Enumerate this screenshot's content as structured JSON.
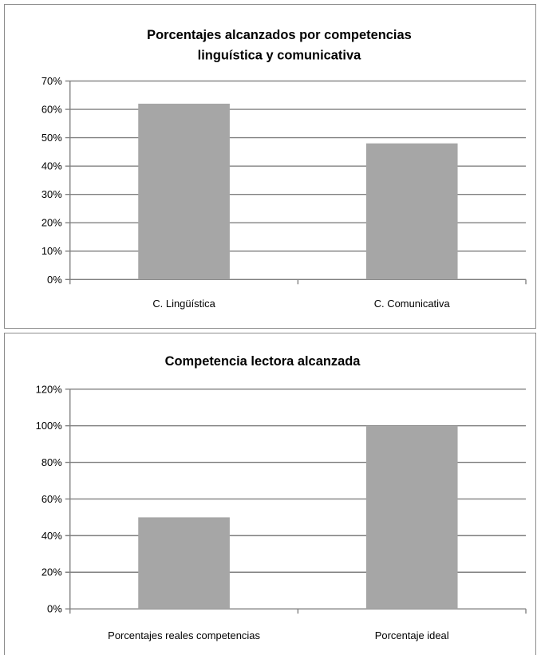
{
  "chart_data": [
    {
      "type": "bar",
      "title": "Porcentajes alcanzados por competencias linguística y comunicativa",
      "title_lines": [
        "Porcentajes alcanzados por competencias",
        "linguística y comunicativa"
      ],
      "categories": [
        "C. Lingüística",
        "C. Comunicativa"
      ],
      "values": [
        62,
        48
      ],
      "value_unit": "%",
      "ylim": [
        0,
        70
      ],
      "yticks": [
        0,
        10,
        20,
        30,
        40,
        50,
        60,
        70
      ],
      "ytick_labels": [
        "0%",
        "10%",
        "20%",
        "30%",
        "40%",
        "50%",
        "60%",
        "70%"
      ],
      "grid": true,
      "legend": "none",
      "bar_color": "#a6a6a6",
      "grid_color": "#808080",
      "xlabel": "",
      "ylabel": ""
    },
    {
      "type": "bar",
      "title": "Competencia lectora alcanzada",
      "title_lines": [
        "Competencia lectora alcanzada"
      ],
      "categories": [
        "Porcentajes reales competencias",
        "Porcentaje ideal"
      ],
      "values": [
        50,
        100
      ],
      "value_unit": "%",
      "ylim": [
        0,
        120
      ],
      "yticks": [
        0,
        20,
        40,
        60,
        80,
        100,
        120
      ],
      "ytick_labels": [
        "0%",
        "20%",
        "40%",
        "60%",
        "80%",
        "100%",
        "120%"
      ],
      "grid": true,
      "legend": "none",
      "bar_color": "#a6a6a6",
      "grid_color": "#808080",
      "xlabel": "",
      "ylabel": ""
    }
  ]
}
